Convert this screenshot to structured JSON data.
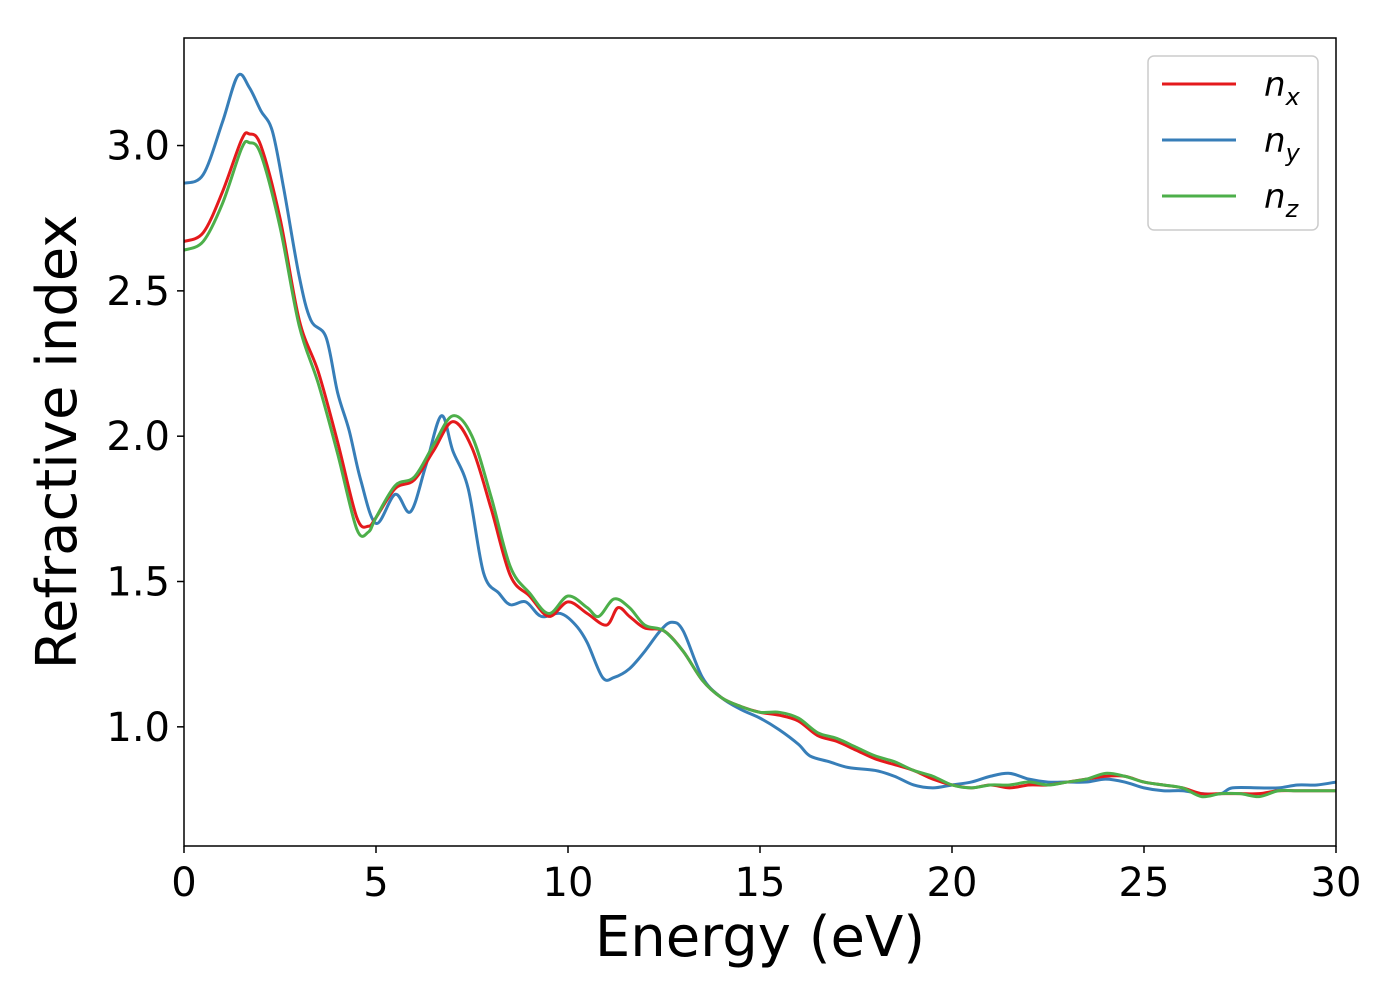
{
  "chart_data": {
    "type": "line",
    "title": "",
    "xlabel": "Energy (eV)",
    "ylabel": "Refractive index",
    "xlim": [
      0,
      30
    ],
    "ylim": [
      0.59,
      3.37
    ],
    "xticks": [
      0,
      5,
      10,
      15,
      20,
      25,
      30
    ],
    "xtick_labels": [
      "0",
      "5",
      "10",
      "15",
      "20",
      "25",
      "30"
    ],
    "yticks": [
      1.0,
      1.5,
      2.0,
      2.5,
      3.0
    ],
    "ytick_labels": [
      "1.0",
      "1.5",
      "2.0",
      "2.5",
      "3.0"
    ],
    "grid": false,
    "legend_position": "top-right",
    "series": [
      {
        "name": "n_x",
        "label_base": "n",
        "label_sub": "x",
        "color": "#e41a1c",
        "points": [
          [
            0,
            2.67
          ],
          [
            0.5,
            2.7
          ],
          [
            1.0,
            2.84
          ],
          [
            1.5,
            3.02
          ],
          [
            1.7,
            3.04
          ],
          [
            2.0,
            3.0
          ],
          [
            2.5,
            2.75
          ],
          [
            3.0,
            2.4
          ],
          [
            3.5,
            2.22
          ],
          [
            4.0,
            1.98
          ],
          [
            4.5,
            1.72
          ],
          [
            4.8,
            1.69
          ],
          [
            5.0,
            1.72
          ],
          [
            5.5,
            1.82
          ],
          [
            6.0,
            1.85
          ],
          [
            6.5,
            1.95
          ],
          [
            7.0,
            2.05
          ],
          [
            7.5,
            1.96
          ],
          [
            8.0,
            1.75
          ],
          [
            8.5,
            1.52
          ],
          [
            9.0,
            1.45
          ],
          [
            9.5,
            1.38
          ],
          [
            10.0,
            1.43
          ],
          [
            10.5,
            1.39
          ],
          [
            11.0,
            1.35
          ],
          [
            11.3,
            1.41
          ],
          [
            11.6,
            1.38
          ],
          [
            12.0,
            1.34
          ],
          [
            12.5,
            1.33
          ],
          [
            13.0,
            1.26
          ],
          [
            13.5,
            1.16
          ],
          [
            14.0,
            1.1
          ],
          [
            14.5,
            1.07
          ],
          [
            15.0,
            1.05
          ],
          [
            15.5,
            1.04
          ],
          [
            16.0,
            1.02
          ],
          [
            16.5,
            0.97
          ],
          [
            17.0,
            0.95
          ],
          [
            17.5,
            0.92
          ],
          [
            18.0,
            0.89
          ],
          [
            18.5,
            0.87
          ],
          [
            19.0,
            0.85
          ],
          [
            19.5,
            0.82
          ],
          [
            20.0,
            0.8
          ],
          [
            20.5,
            0.79
          ],
          [
            21.0,
            0.8
          ],
          [
            21.5,
            0.79
          ],
          [
            22.0,
            0.8
          ],
          [
            22.5,
            0.8
          ],
          [
            23.0,
            0.81
          ],
          [
            23.5,
            0.82
          ],
          [
            24.0,
            0.83
          ],
          [
            24.5,
            0.83
          ],
          [
            25.0,
            0.81
          ],
          [
            25.5,
            0.8
          ],
          [
            26.0,
            0.79
          ],
          [
            26.5,
            0.77
          ],
          [
            27.0,
            0.77
          ],
          [
            27.5,
            0.77
          ],
          [
            28.0,
            0.77
          ],
          [
            28.5,
            0.78
          ],
          [
            29.0,
            0.78
          ],
          [
            29.5,
            0.78
          ],
          [
            30.0,
            0.78
          ]
        ]
      },
      {
        "name": "n_y",
        "label_base": "n",
        "label_sub": "y",
        "color": "#377eb8",
        "points": [
          [
            0,
            2.87
          ],
          [
            0.5,
            2.9
          ],
          [
            1.0,
            3.08
          ],
          [
            1.4,
            3.24
          ],
          [
            1.7,
            3.2
          ],
          [
            2.0,
            3.12
          ],
          [
            2.3,
            3.05
          ],
          [
            2.6,
            2.85
          ],
          [
            3.0,
            2.55
          ],
          [
            3.3,
            2.4
          ],
          [
            3.7,
            2.34
          ],
          [
            4.0,
            2.15
          ],
          [
            4.3,
            2.02
          ],
          [
            4.6,
            1.85
          ],
          [
            5.0,
            1.7
          ],
          [
            5.5,
            1.8
          ],
          [
            5.9,
            1.74
          ],
          [
            6.3,
            1.9
          ],
          [
            6.7,
            2.07
          ],
          [
            7.0,
            1.95
          ],
          [
            7.4,
            1.82
          ],
          [
            7.8,
            1.53
          ],
          [
            8.2,
            1.46
          ],
          [
            8.5,
            1.42
          ],
          [
            8.9,
            1.43
          ],
          [
            9.3,
            1.38
          ],
          [
            9.8,
            1.39
          ],
          [
            10.2,
            1.35
          ],
          [
            10.5,
            1.29
          ],
          [
            10.9,
            1.17
          ],
          [
            11.2,
            1.17
          ],
          [
            11.6,
            1.2
          ],
          [
            12.0,
            1.26
          ],
          [
            12.4,
            1.33
          ],
          [
            12.7,
            1.36
          ],
          [
            13.0,
            1.33
          ],
          [
            13.5,
            1.17
          ],
          [
            14.0,
            1.1
          ],
          [
            14.5,
            1.06
          ],
          [
            15.0,
            1.03
          ],
          [
            15.5,
            0.99
          ],
          [
            16.0,
            0.94
          ],
          [
            16.3,
            0.9
          ],
          [
            16.8,
            0.88
          ],
          [
            17.3,
            0.86
          ],
          [
            18.0,
            0.85
          ],
          [
            18.5,
            0.83
          ],
          [
            19.0,
            0.8
          ],
          [
            19.5,
            0.79
          ],
          [
            20.0,
            0.8
          ],
          [
            20.5,
            0.81
          ],
          [
            21.0,
            0.83
          ],
          [
            21.5,
            0.84
          ],
          [
            22.0,
            0.82
          ],
          [
            22.5,
            0.81
          ],
          [
            23.0,
            0.81
          ],
          [
            23.5,
            0.81
          ],
          [
            24.0,
            0.82
          ],
          [
            24.5,
            0.81
          ],
          [
            25.0,
            0.79
          ],
          [
            25.5,
            0.78
          ],
          [
            26.0,
            0.78
          ],
          [
            26.5,
            0.77
          ],
          [
            27.0,
            0.77
          ],
          [
            27.3,
            0.79
          ],
          [
            28.0,
            0.79
          ],
          [
            28.5,
            0.79
          ],
          [
            29.0,
            0.8
          ],
          [
            29.5,
            0.8
          ],
          [
            30.0,
            0.81
          ]
        ]
      },
      {
        "name": "n_z",
        "label_base": "n",
        "label_sub": "z",
        "color": "#4daf4a",
        "points": [
          [
            0,
            2.64
          ],
          [
            0.5,
            2.67
          ],
          [
            1.0,
            2.8
          ],
          [
            1.5,
            2.99
          ],
          [
            1.7,
            3.01
          ],
          [
            2.0,
            2.97
          ],
          [
            2.5,
            2.72
          ],
          [
            3.0,
            2.38
          ],
          [
            3.5,
            2.18
          ],
          [
            4.0,
            1.94
          ],
          [
            4.5,
            1.68
          ],
          [
            4.8,
            1.67
          ],
          [
            5.0,
            1.72
          ],
          [
            5.5,
            1.83
          ],
          [
            6.0,
            1.86
          ],
          [
            6.5,
            1.97
          ],
          [
            7.0,
            2.07
          ],
          [
            7.5,
            2.0
          ],
          [
            8.0,
            1.79
          ],
          [
            8.5,
            1.55
          ],
          [
            9.0,
            1.46
          ],
          [
            9.5,
            1.39
          ],
          [
            10.0,
            1.45
          ],
          [
            10.5,
            1.41
          ],
          [
            10.8,
            1.38
          ],
          [
            11.2,
            1.44
          ],
          [
            11.6,
            1.41
          ],
          [
            12.0,
            1.35
          ],
          [
            12.5,
            1.33
          ],
          [
            13.0,
            1.26
          ],
          [
            13.5,
            1.16
          ],
          [
            14.0,
            1.1
          ],
          [
            14.5,
            1.07
          ],
          [
            15.0,
            1.05
          ],
          [
            15.5,
            1.05
          ],
          [
            16.0,
            1.03
          ],
          [
            16.5,
            0.98
          ],
          [
            17.0,
            0.96
          ],
          [
            17.5,
            0.93
          ],
          [
            18.0,
            0.9
          ],
          [
            18.5,
            0.88
          ],
          [
            19.0,
            0.85
          ],
          [
            19.5,
            0.83
          ],
          [
            20.0,
            0.8
          ],
          [
            20.5,
            0.79
          ],
          [
            21.0,
            0.8
          ],
          [
            21.5,
            0.8
          ],
          [
            22.0,
            0.81
          ],
          [
            22.5,
            0.8
          ],
          [
            23.0,
            0.81
          ],
          [
            23.5,
            0.82
          ],
          [
            24.0,
            0.84
          ],
          [
            24.5,
            0.83
          ],
          [
            25.0,
            0.81
          ],
          [
            25.5,
            0.8
          ],
          [
            26.0,
            0.79
          ],
          [
            26.5,
            0.76
          ],
          [
            27.0,
            0.77
          ],
          [
            27.5,
            0.77
          ],
          [
            28.0,
            0.76
          ],
          [
            28.5,
            0.78
          ],
          [
            29.0,
            0.78
          ],
          [
            29.5,
            0.78
          ],
          [
            30.0,
            0.78
          ]
        ]
      }
    ]
  }
}
